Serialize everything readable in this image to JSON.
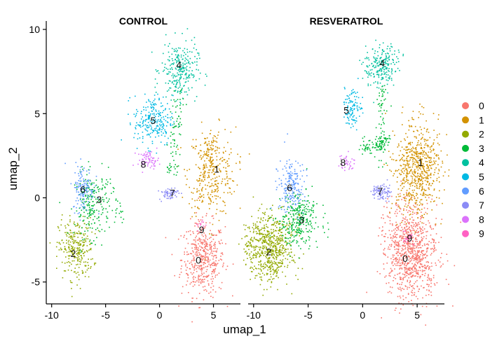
{
  "chart_data": {
    "type": "scatter",
    "xlabel": "umap_1",
    "ylabel": "umap_2",
    "xlim": [
      -10.5,
      7.5
    ],
    "ylim": [
      -6.3,
      10.5
    ],
    "xticks": [
      -10,
      -5,
      0,
      5
    ],
    "yticks": [
      -5,
      0,
      5,
      10
    ],
    "grid": false,
    "legend_position": "right",
    "cluster_ids": [
      "0",
      "1",
      "2",
      "3",
      "4",
      "5",
      "6",
      "7",
      "8",
      "9"
    ],
    "cluster_colors": [
      "#F8766D",
      "#D39200",
      "#93AA00",
      "#00BA38",
      "#00C19F",
      "#00B9E3",
      "#619CFF",
      "#8B8BF6",
      "#DB72FB",
      "#FF61C3"
    ],
    "panels": [
      {
        "title": "CONTROL",
        "clusters": [
          {
            "id": "0",
            "cx": 4.0,
            "cy": -3.6,
            "rx": 2.0,
            "ry": 2.2,
            "n": 450,
            "label_x": 3.6,
            "label_y": -3.7
          },
          {
            "id": "1",
            "cx": 4.8,
            "cy": 1.6,
            "rx": 2.2,
            "ry": 2.6,
            "n": 320,
            "label_x": 5.3,
            "label_y": 1.7
          },
          {
            "id": "2",
            "cx": -7.8,
            "cy": -3.0,
            "rx": 1.6,
            "ry": 1.8,
            "n": 280,
            "label_x": -8.0,
            "label_y": -3.3
          },
          {
            "id": "3",
            "cx": -6.3,
            "cy": -0.4,
            "rx": 1.6,
            "ry": 1.9,
            "n": 220,
            "label_x": -5.6,
            "label_y": -0.1
          },
          {
            "id": "4",
            "cx": 1.8,
            "cy": 7.6,
            "rx": 1.7,
            "ry": 1.7,
            "n": 260,
            "label_x": 1.8,
            "label_y": 7.9
          },
          {
            "id": "5",
            "cx": -0.6,
            "cy": 4.6,
            "rx": 1.8,
            "ry": 1.5,
            "n": 240,
            "label_x": -0.6,
            "label_y": 4.6
          },
          {
            "id": "6",
            "cx": -7.1,
            "cy": 0.6,
            "rx": 1.0,
            "ry": 1.4,
            "n": 140,
            "label_x": -7.1,
            "label_y": 0.5
          },
          {
            "id": "7",
            "cx": 0.8,
            "cy": 0.3,
            "rx": 0.9,
            "ry": 0.4,
            "n": 60,
            "label_x": 1.2,
            "label_y": 0.3
          },
          {
            "id": "8",
            "cx": -1.1,
            "cy": 2.3,
            "rx": 1.0,
            "ry": 0.5,
            "n": 70,
            "label_x": -1.5,
            "label_y": 2.0
          },
          {
            "id": "9",
            "cx": 3.9,
            "cy": -1.6,
            "rx": 0.4,
            "ry": 0.4,
            "n": 12,
            "label_x": 3.9,
            "label_y": -1.9
          }
        ],
        "bridges": [
          {
            "color_index": 3,
            "x1": 1.8,
            "y1": 6.2,
            "x2": 1.0,
            "y2": 1.5,
            "n": 80
          },
          {
            "color_index": 1,
            "x1": 3.5,
            "y1": 0.0,
            "x2": 4.8,
            "y2": 3.5,
            "n": 50
          },
          {
            "color_index": 3,
            "x1": -5.0,
            "y1": 1.5,
            "x2": -3.5,
            "y2": -1.5,
            "n": 25
          }
        ]
      },
      {
        "title": "RESVERATROL",
        "clusters": [
          {
            "id": "0",
            "cx": 4.4,
            "cy": -3.2,
            "rx": 2.4,
            "ry": 2.8,
            "n": 900,
            "label_x": 3.9,
            "label_y": -3.6
          },
          {
            "id": "1",
            "cx": 4.9,
            "cy": 1.8,
            "rx": 2.1,
            "ry": 2.6,
            "n": 650,
            "label_x": 5.3,
            "label_y": 2.1
          },
          {
            "id": "2",
            "cx": -8.6,
            "cy": -2.9,
            "rx": 2.2,
            "ry": 1.9,
            "n": 650,
            "label_x": -8.6,
            "label_y": -3.2
          },
          {
            "id": "3",
            "cx": -6.0,
            "cy": -1.3,
            "rx": 1.9,
            "ry": 1.6,
            "n": 300,
            "label_x": -5.6,
            "label_y": -1.3
          },
          {
            "id": "4",
            "cx": 1.8,
            "cy": 7.9,
            "rx": 1.5,
            "ry": 1.3,
            "n": 220,
            "label_x": 1.8,
            "label_y": 8.0
          },
          {
            "id": "5",
            "cx": -1.1,
            "cy": 5.3,
            "rx": 0.9,
            "ry": 1.1,
            "n": 110,
            "label_x": -1.5,
            "label_y": 5.2
          },
          {
            "id": "6",
            "cx": -6.6,
            "cy": 0.8,
            "rx": 1.2,
            "ry": 1.6,
            "n": 200,
            "label_x": -6.7,
            "label_y": 0.6
          },
          {
            "id": "7",
            "cx": 1.7,
            "cy": 0.4,
            "rx": 0.9,
            "ry": 0.5,
            "n": 90,
            "label_x": 1.6,
            "label_y": 0.4
          },
          {
            "id": "8",
            "cx": -1.6,
            "cy": 2.2,
            "rx": 0.7,
            "ry": 0.5,
            "n": 35,
            "label_x": -1.8,
            "label_y": 2.1
          },
          {
            "id": "9",
            "cx": 4.1,
            "cy": -2.3,
            "rx": 0.5,
            "ry": 0.4,
            "n": 20,
            "label_x": 4.3,
            "label_y": -2.4
          }
        ],
        "bridges": [
          {
            "color_index": 3,
            "x1": 1.8,
            "y1": 6.6,
            "x2": 1.6,
            "y2": 2.0,
            "n": 70
          },
          {
            "color_index": 3,
            "x1": 0.0,
            "y1": 3.0,
            "x2": 2.5,
            "y2": 3.4,
            "n": 90
          }
        ]
      }
    ],
    "legend": {
      "entries": [
        "0",
        "1",
        "2",
        "3",
        "4",
        "5",
        "6",
        "7",
        "8",
        "9"
      ]
    }
  }
}
